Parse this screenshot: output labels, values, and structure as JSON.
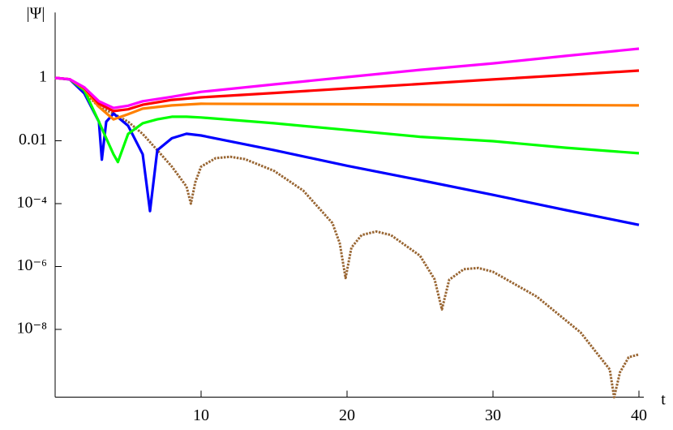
{
  "chart_data": {
    "type": "line",
    "xlabel": "t",
    "ylabel": "|Ψ|",
    "xlim": [
      0,
      40
    ],
    "ylim": [
      7e-11,
      120
    ],
    "log_y": true,
    "xticks": [
      10,
      20,
      30,
      40
    ],
    "yticks": [
      {
        "value": 1e-08,
        "label": "10⁻⁸"
      },
      {
        "value": 1e-06,
        "label": "10⁻⁶"
      },
      {
        "value": 0.0001,
        "label": "10⁻⁴"
      },
      0.01,
      1
    ],
    "series": [
      {
        "color": "#996633",
        "dashed": true,
        "x": [
          0,
          1,
          2,
          3,
          4,
          5,
          6,
          7,
          8,
          9,
          9.3,
          9.6,
          10,
          11,
          12,
          13,
          15,
          17,
          19,
          19.5,
          19.9,
          20.3,
          21,
          22,
          23,
          25,
          26,
          26.5,
          27,
          28,
          29,
          30,
          33,
          36,
          38,
          38.3,
          38.7,
          39.3,
          40
        ],
        "values": [
          1,
          0.9,
          0.35,
          0.12,
          0.073,
          0.04,
          0.0165,
          0.005,
          0.0015,
          0.00035,
          0.0001,
          0.00047,
          0.0015,
          0.0028,
          0.0031,
          0.0026,
          0.0011,
          0.00026,
          2.4e-05,
          5.5e-06,
          4.3e-07,
          4e-06,
          1e-05,
          1.3e-05,
          1e-05,
          2.2e-06,
          3.9e-07,
          4.3e-08,
          3.8e-07,
          8.2e-07,
          9e-07,
          6.8e-07,
          1.1e-07,
          8e-09,
          5.3e-10,
          6.9e-11,
          4.3e-10,
          1.3e-09,
          1.6e-09
        ]
      },
      {
        "color": "#0000ff",
        "x": [
          0,
          1,
          2,
          3,
          3.2,
          3.5,
          4,
          5,
          6,
          6.5,
          7,
          8,
          9,
          10,
          15,
          20,
          25,
          30,
          35,
          40
        ],
        "values": [
          1,
          0.89,
          0.32,
          0.04,
          0.0025,
          0.04,
          0.073,
          0.03,
          0.0037,
          5.8e-05,
          0.005,
          0.012,
          0.0166,
          0.0147,
          0.005,
          0.0016,
          0.00056,
          0.00019,
          6.2e-05,
          2.1e-05
        ]
      },
      {
        "color": "#00ff00",
        "x": [
          0,
          1,
          2,
          3,
          3.5,
          4,
          4.3,
          5,
          6,
          7,
          8,
          9,
          10,
          15,
          20,
          25,
          30,
          35,
          40
        ],
        "values": [
          1,
          0.9,
          0.4,
          0.04,
          0.012,
          0.0037,
          0.0021,
          0.0165,
          0.036,
          0.048,
          0.058,
          0.058,
          0.055,
          0.036,
          0.022,
          0.0134,
          0.0097,
          0.006,
          0.004
        ]
      },
      {
        "color": "#ff8000",
        "x": [
          0,
          1,
          2,
          3,
          4,
          5,
          6,
          8,
          10,
          20,
          30,
          40
        ],
        "values": [
          1,
          0.9,
          0.45,
          0.12,
          0.048,
          0.07,
          0.105,
          0.133,
          0.15,
          0.145,
          0.138,
          0.133
        ]
      },
      {
        "color": "#ff0000",
        "x": [
          0,
          1,
          2,
          3,
          4,
          5,
          6,
          8,
          10,
          15,
          20,
          25,
          30,
          35,
          40
        ],
        "values": [
          1,
          0.9,
          0.48,
          0.15,
          0.088,
          0.1,
          0.14,
          0.2,
          0.24,
          0.33,
          0.46,
          0.64,
          0.89,
          1.23,
          1.7
        ]
      },
      {
        "color": "#ff00ff",
        "x": [
          0,
          1,
          2,
          3,
          4,
          5,
          6,
          8,
          10,
          15,
          20,
          25,
          30,
          35,
          40
        ],
        "values": [
          1,
          0.9,
          0.5,
          0.18,
          0.11,
          0.13,
          0.18,
          0.25,
          0.36,
          0.62,
          1.06,
          1.8,
          2.9,
          5,
          8.5
        ]
      }
    ]
  }
}
